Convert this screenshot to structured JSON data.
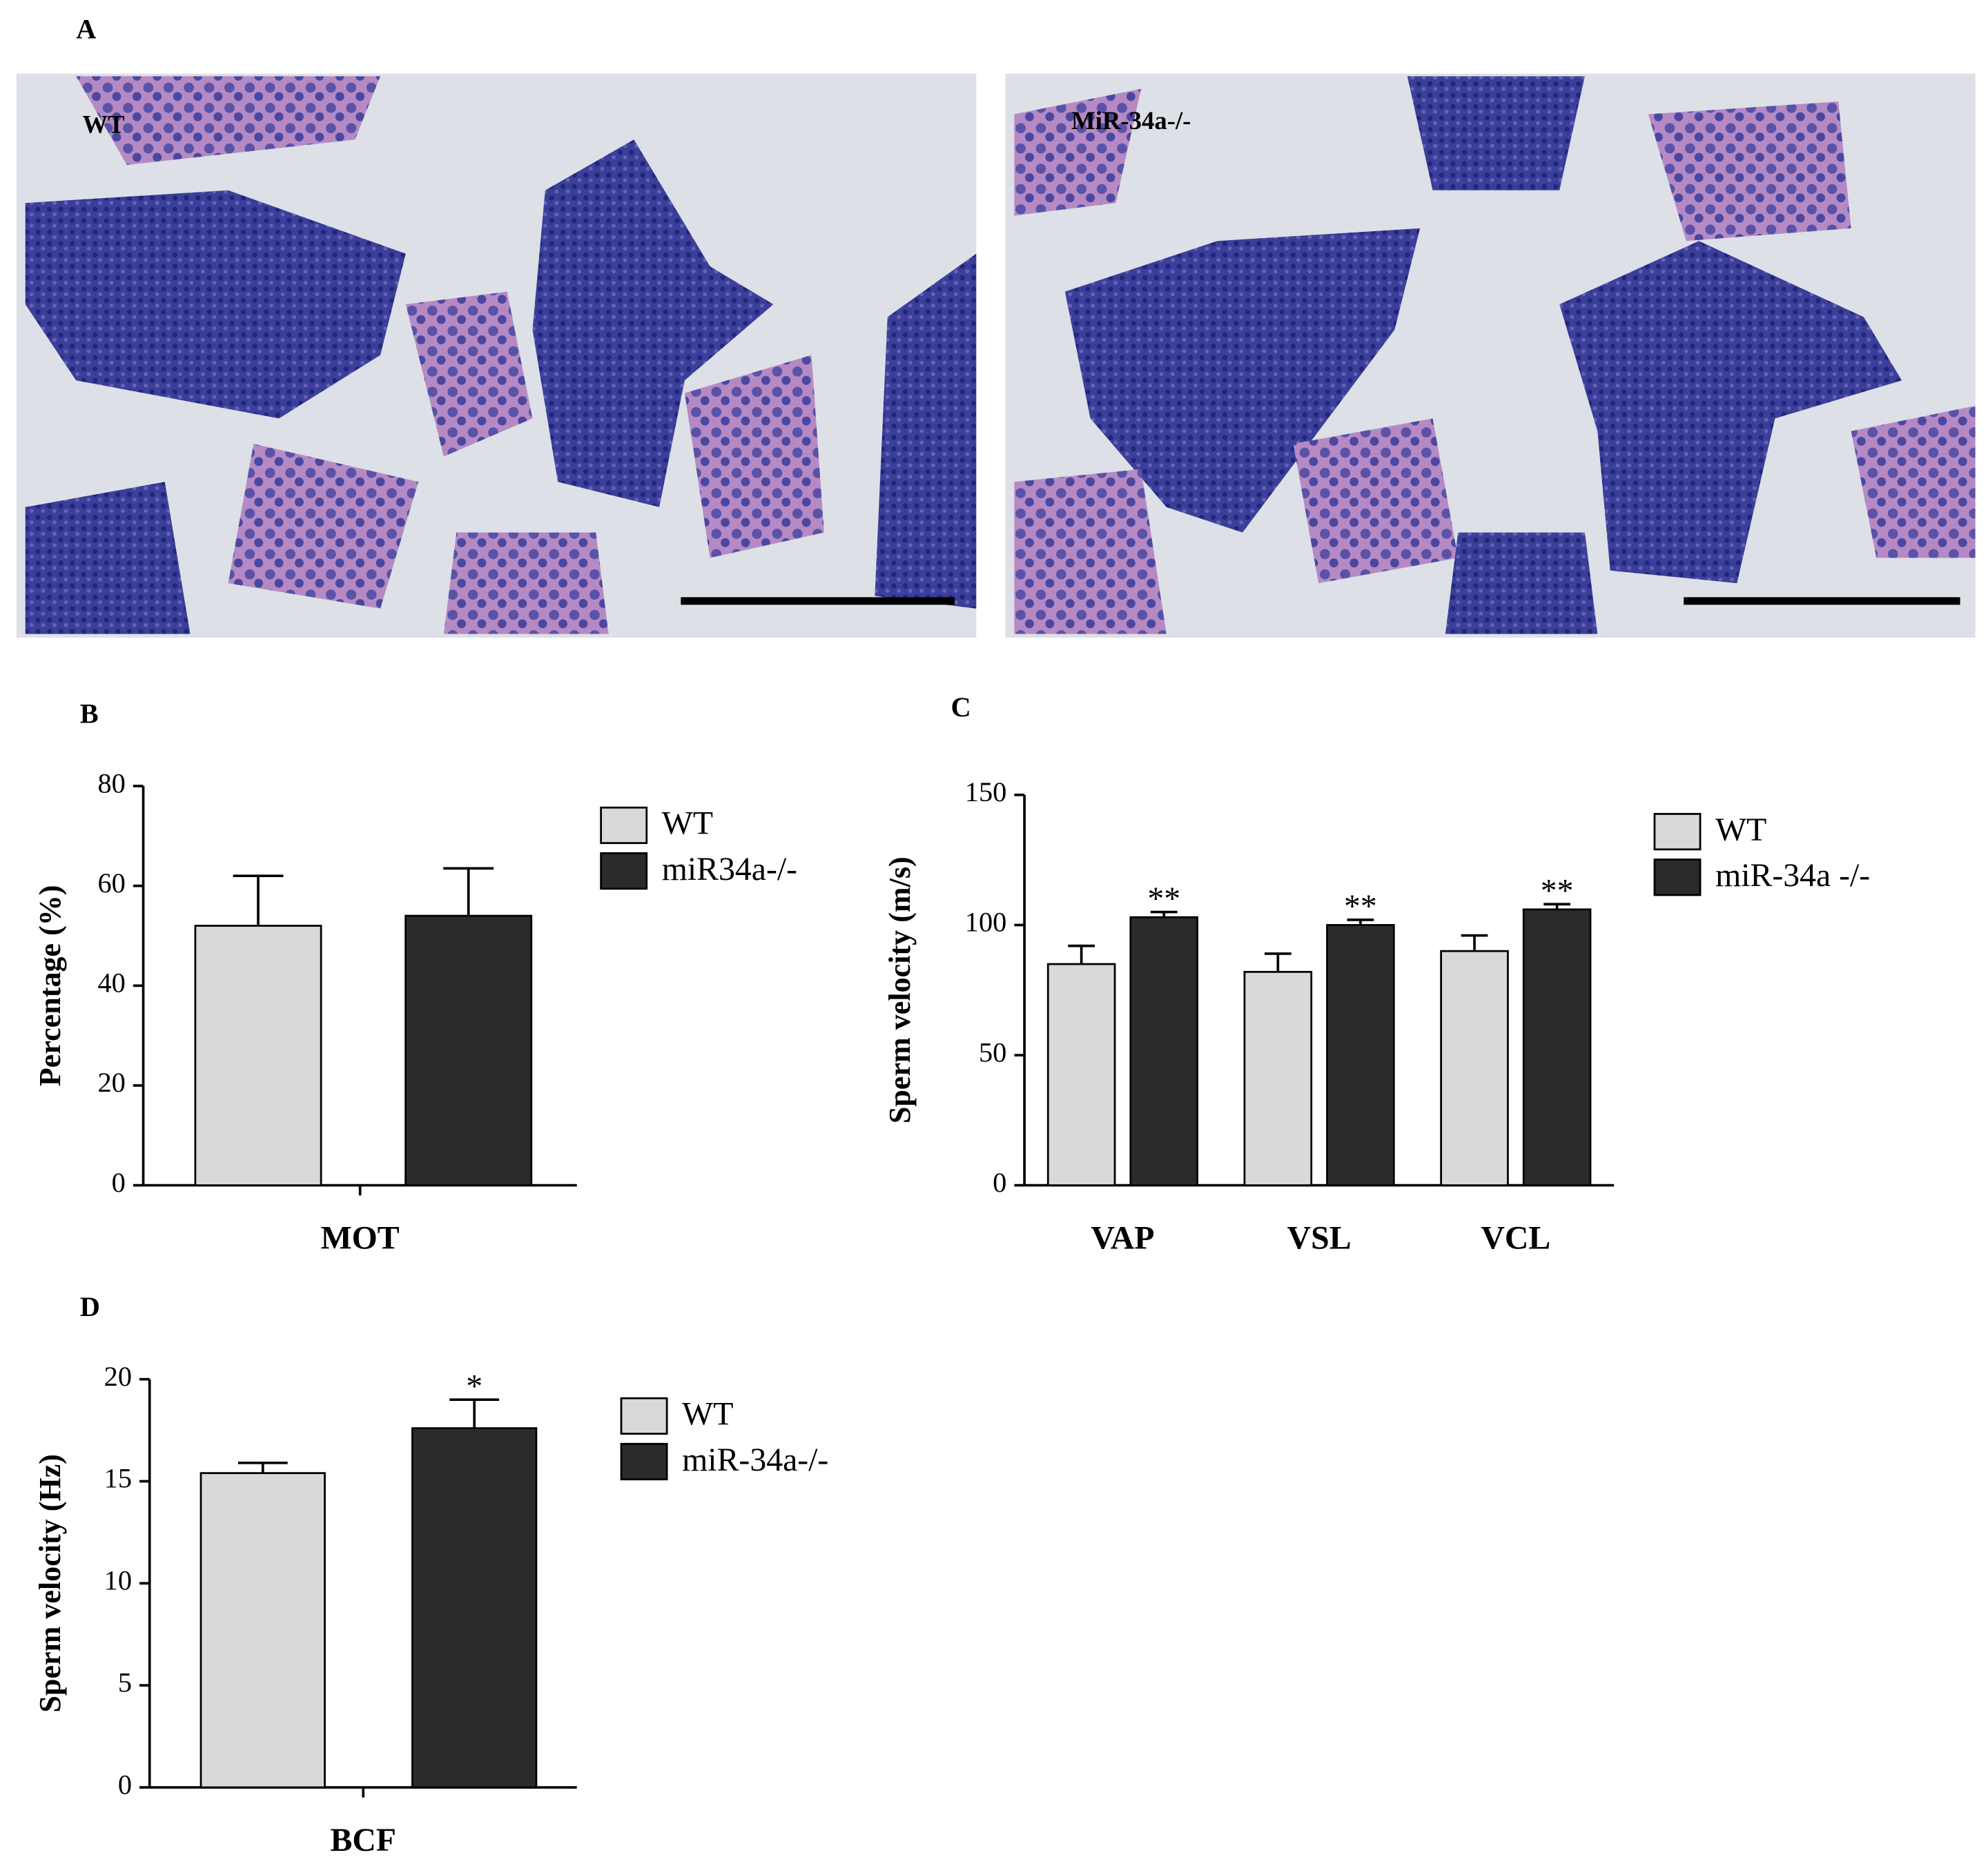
{
  "panel_labels": [
    "A",
    "B",
    "C",
    "D"
  ],
  "micrographs": [
    "WT",
    "MiR-34a-/-"
  ],
  "chart_data": [
    {
      "type": "bar",
      "ylabel": "Percentage (%)",
      "categories": [
        "MOT"
      ],
      "series": [
        {
          "name": "WT",
          "color": "#d9d9d9",
          "values": [
            52
          ],
          "errors": [
            10
          ]
        },
        {
          "name": "miR34a-/-",
          "color": "#2b2b2b",
          "values": [
            54
          ],
          "errors": [
            9.5
          ]
        }
      ],
      "ylim": [
        0,
        80
      ],
      "yticks": [
        0,
        20,
        40,
        60,
        80
      ]
    },
    {
      "type": "bar",
      "ylabel": "Sperm velocity (m/s)",
      "categories": [
        "VAP",
        "VSL",
        "VCL"
      ],
      "series": [
        {
          "name": "WT",
          "color": "#d9d9d9",
          "values": [
            85,
            82,
            90
          ],
          "errors": [
            7,
            7,
            6
          ]
        },
        {
          "name": "miR-34a -/-",
          "color": "#2b2b2b",
          "values": [
            103,
            100,
            106
          ],
          "errors": [
            2,
            2,
            2
          ],
          "significance": [
            "**",
            "**",
            "**"
          ]
        }
      ],
      "ylim": [
        0,
        150
      ],
      "yticks": [
        0,
        50,
        100,
        150
      ]
    },
    {
      "type": "bar",
      "ylabel": "Sperm velocity (Hz)",
      "categories": [
        "BCF"
      ],
      "series": [
        {
          "name": "WT",
          "color": "#d9d9d9",
          "values": [
            15.4
          ],
          "errors": [
            0.5
          ]
        },
        {
          "name": "miR-34a-/-",
          "color": "#2b2b2b",
          "values": [
            17.6
          ],
          "errors": [
            1.4
          ],
          "significance": [
            "*"
          ]
        }
      ],
      "ylim": [
        0,
        20
      ],
      "yticks": [
        0,
        5,
        10,
        15,
        20
      ]
    }
  ]
}
